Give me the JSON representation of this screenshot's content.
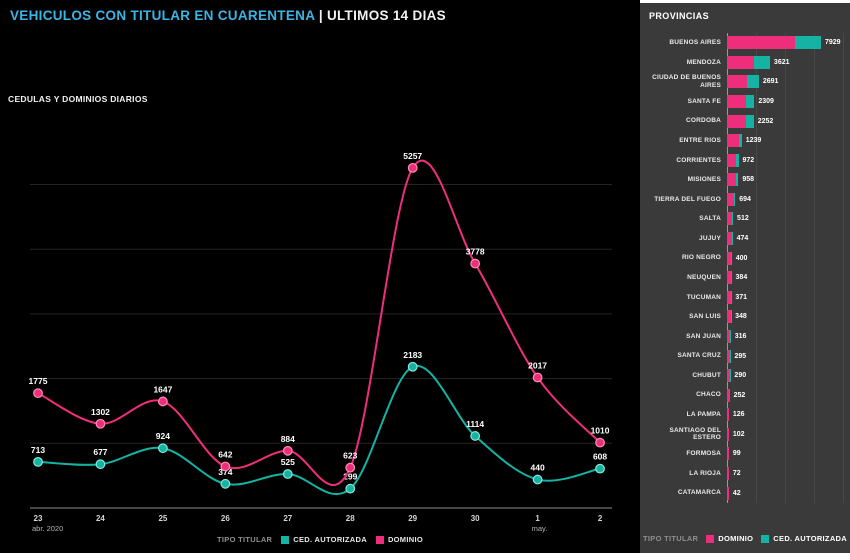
{
  "header": {
    "title_highlight": "VEHICULOS CON TITULAR EN CUARENTENA",
    "separator": "|",
    "title_rest": "ULTIMOS 14 DIAS"
  },
  "colors": {
    "pink": "#ef2e7b",
    "pink_point_stroke": "#ff8fb5",
    "teal": "#14b3a4",
    "teal_point_stroke": "#8ae8da",
    "title_accent": "#3bb4e6",
    "sidebar_bg": "#3a3a3a",
    "background": "#000000"
  },
  "chart_data": [
    {
      "type": "line",
      "title": "CEDULAS Y DOMINIOS DIARIOS",
      "legend_title": "TIPO TITULAR",
      "x": [
        "23",
        "24",
        "25",
        "26",
        "27",
        "28",
        "29",
        "30",
        "1",
        "2"
      ],
      "x_sublabels": [
        {
          "index": 0,
          "label": "abr. 2020"
        },
        {
          "index": 8,
          "label": "may."
        }
      ],
      "ylim": [
        0,
        5500
      ],
      "grid_step": 1000,
      "grid": true,
      "series": [
        {
          "name": "CED. AUTORIZADA",
          "color": "#14b3a4",
          "values": [
            713,
            677,
            924,
            374,
            525,
            299,
            2183,
            1114,
            440,
            608
          ]
        },
        {
          "name": "DOMINIO",
          "color": "#ef2e7b",
          "values": [
            1775,
            1302,
            1647,
            642,
            884,
            623,
            5257,
            3778,
            2017,
            1010
          ]
        }
      ]
    },
    {
      "type": "bar",
      "title": "PROVINCIAS",
      "legend_title": "TIPO TITULAR",
      "orientation": "horizontal",
      "stacked": true,
      "legend": [
        {
          "name": "DOMINIO",
          "color": "#ef2e7b"
        },
        {
          "name": "CED. AUTORIZADA",
          "color": "#14b3a4"
        }
      ],
      "categories": [
        "BUENOS AIRES",
        "MENDOZA",
        "CIUDAD DE BUENOS AIRES",
        "SANTA FE",
        "CORDOBA",
        "ENTRE RIOS",
        "CORRIENTES",
        "MISIONES",
        "TIERRA DEL FUEGO",
        "SALTA",
        "JUJUY",
        "RIO NEGRO",
        "NEUQUEN",
        "TUCUMAN",
        "SAN LUIS",
        "SAN JUAN",
        "SANTA CRUZ",
        "CHUBUT",
        "CHACO",
        "LA PAMPA",
        "SANTIAGO DEL ESTERO",
        "FORMOSA",
        "LA RIOJA",
        "CATAMARCA"
      ],
      "totals": [
        7929,
        3621,
        2691,
        2309,
        2252,
        1239,
        972,
        958,
        694,
        512,
        474,
        400,
        384,
        371,
        348,
        316,
        295,
        290,
        252,
        126,
        102,
        99,
        72,
        42
      ],
      "dominio_fraction": [
        0.72,
        0.64,
        0.62,
        0.7,
        0.72,
        0.8,
        0.82,
        0.82,
        0.8,
        0.82,
        0.82,
        0.85,
        0.85,
        0.8,
        0.85,
        0.85,
        0.88,
        0.88,
        0.88,
        0.92,
        0.92,
        0.92,
        0.92,
        0.92
      ]
    }
  ]
}
